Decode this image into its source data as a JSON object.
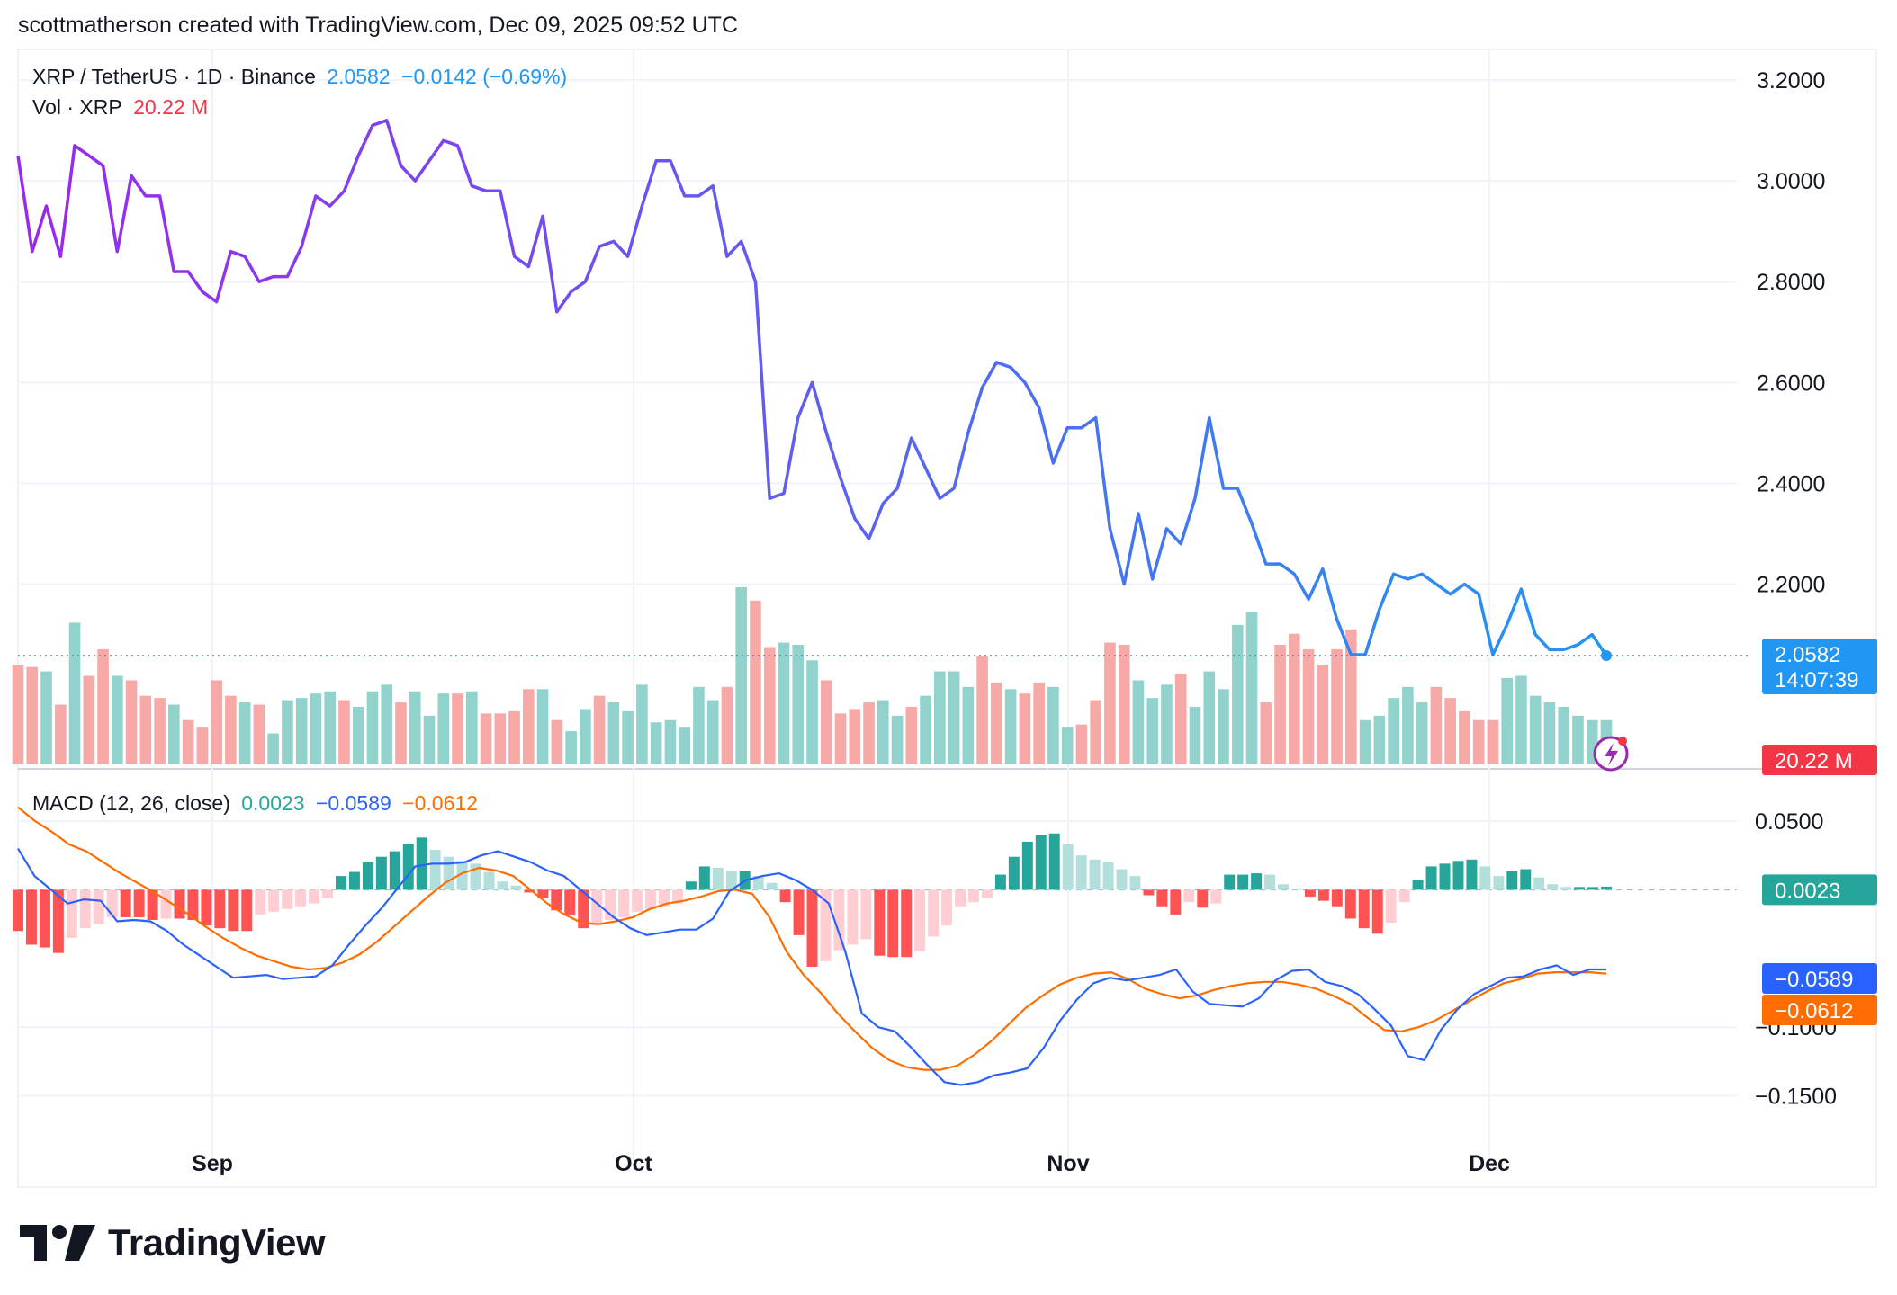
{
  "header": {
    "caption": "scottmatherson created with TradingView.com, Dec 09, 2025 09:52 UTC"
  },
  "legend": {
    "symbol": "XRP / TetherUS · 1D · Binance",
    "last": "2.0582",
    "change": "−0.0142 (−0.69%)",
    "vol_label": "Vol · XRP",
    "vol_value": "20.22 M",
    "macd_label": "MACD (12, 26, close)",
    "macd_hist": "0.0023",
    "macd_line": "−0.0589",
    "macd_signal": "−0.0612"
  },
  "badges": {
    "price": "2.0582",
    "countdown": "14:07:39",
    "volume": "20.22 M",
    "hist": "0.0023",
    "macd": "−0.0589",
    "signal": "−0.0612"
  },
  "colors": {
    "price_start": "#9c27f0",
    "price_end": "#2196f3",
    "up_vol": "#92d2cc",
    "down_vol": "#f7a9a7",
    "hist_up_strong": "#26a69a",
    "hist_up_weak": "#b2dfdb",
    "hist_down_strong": "#ff5252",
    "hist_down_weak": "#ffcdd2",
    "macd_line": "#2962ff",
    "signal_line": "#ff6d00",
    "grid": "#f0f3fa",
    "text": "#131722"
  },
  "logo": {
    "text": "TradingView",
    "icon": "tradingview-logo-icon"
  },
  "chart_data": {
    "type": "line",
    "price": {
      "name": "XRP / TetherUS",
      "y_ticks": [
        3.2,
        3.0,
        2.8,
        2.6,
        2.4,
        2.2
      ],
      "y_tick_labels": [
        "3.2000",
        "3.0000",
        "2.8000",
        "2.6000",
        "2.4000",
        "2.2000"
      ],
      "ylim": [
        2.03,
        3.25
      ],
      "values": [
        3.05,
        2.86,
        2.95,
        2.85,
        3.07,
        3.05,
        3.03,
        2.86,
        3.01,
        2.97,
        2.97,
        2.82,
        2.82,
        2.78,
        2.76,
        2.86,
        2.85,
        2.8,
        2.81,
        2.81,
        2.87,
        2.97,
        2.95,
        2.98,
        3.05,
        3.11,
        3.12,
        3.03,
        3.0,
        3.04,
        3.08,
        3.07,
        2.99,
        2.98,
        2.98,
        2.85,
        2.83,
        2.93,
        2.74,
        2.78,
        2.8,
        2.87,
        2.88,
        2.85,
        2.95,
        3.04,
        3.04,
        2.97,
        2.97,
        2.99,
        2.85,
        2.88,
        2.8,
        2.37,
        2.38,
        2.53,
        2.6,
        2.5,
        2.41,
        2.33,
        2.29,
        2.36,
        2.39,
        2.49,
        2.43,
        2.37,
        2.39,
        2.5,
        2.59,
        2.64,
        2.63,
        2.6,
        2.55,
        2.44,
        2.51,
        2.51,
        2.53,
        2.31,
        2.2,
        2.34,
        2.21,
        2.31,
        2.28,
        2.37,
        2.53,
        2.39,
        2.39,
        2.32,
        2.24,
        2.24,
        2.22,
        2.17,
        2.23,
        2.13,
        2.06,
        2.06,
        2.15,
        2.22,
        2.21,
        2.22,
        2.2,
        2.18,
        2.2,
        2.18,
        2.06,
        2.12,
        2.19,
        2.1,
        2.07,
        2.07,
        2.08,
        2.1,
        2.058
      ],
      "last": 2.0582
    },
    "volume": {
      "up": [
        0,
        0,
        1,
        0,
        1,
        0,
        0,
        1,
        0,
        0,
        0,
        1,
        0,
        0,
        0,
        0,
        1,
        0,
        1,
        1,
        1,
        1,
        1,
        0,
        1,
        1,
        1,
        0,
        1,
        1,
        1,
        0,
        1,
        0,
        0,
        0,
        0,
        1,
        0,
        1,
        1,
        0,
        1,
        1,
        1,
        1,
        1,
        1,
        1,
        1,
        0,
        1,
        0,
        0,
        1,
        1,
        1,
        0,
        0,
        0,
        0,
        1,
        1,
        0,
        1,
        1,
        1,
        1,
        0,
        0,
        1,
        0,
        0,
        1,
        1,
        0,
        0,
        0,
        0,
        1,
        1,
        1,
        0,
        1,
        1,
        1,
        1,
        1,
        0,
        0,
        0,
        0,
        0,
        0,
        0,
        1,
        1,
        1,
        1,
        1,
        0,
        0,
        0,
        0,
        0,
        1,
        1,
        1,
        1,
        1,
        1,
        1,
        1
      ],
      "values": [
        45,
        44,
        42,
        27,
        64,
        40,
        52,
        40,
        38,
        31,
        30,
        27,
        20,
        17,
        38,
        31,
        28,
        27,
        14,
        29,
        30,
        32,
        33,
        29,
        26,
        33,
        36,
        28,
        33,
        22,
        32,
        32,
        33,
        23,
        23,
        24,
        34,
        34,
        20,
        15,
        25,
        31,
        28,
        24,
        36,
        19,
        20,
        17,
        35,
        29,
        35,
        80,
        74,
        53,
        55,
        54,
        47,
        38,
        23,
        25,
        28,
        29,
        22,
        26,
        31,
        42,
        42,
        35,
        49,
        37,
        34,
        32,
        37,
        35,
        17,
        18,
        29,
        55,
        54,
        38,
        30,
        36,
        41,
        26,
        42,
        34,
        63,
        69,
        28,
        54,
        59,
        52,
        45,
        52,
        61,
        20,
        22,
        30,
        35,
        28,
        35,
        30,
        24,
        20,
        20,
        39,
        40,
        31,
        28,
        26,
        22,
        20,
        20
      ]
    },
    "macd": {
      "y_ticks": [
        0.05,
        -0.1,
        -0.15
      ],
      "y_tick_labels": [
        "0.0500",
        "−0.1000",
        "−0.1500"
      ],
      "ylim": [
        -0.17,
        0.09
      ],
      "macd": [
        0.03,
        0.01,
        0.0,
        -0.01,
        -0.007,
        -0.008,
        -0.023,
        -0.022,
        -0.023,
        -0.03,
        -0.04,
        -0.048,
        -0.056,
        -0.064,
        -0.063,
        -0.062,
        -0.065,
        -0.064,
        -0.063,
        -0.055,
        -0.04,
        -0.026,
        -0.013,
        0.002,
        0.017,
        0.019,
        0.019,
        0.02,
        0.025,
        0.028,
        0.024,
        0.02,
        0.014,
        0.01,
        0.0,
        -0.01,
        -0.02,
        -0.028,
        -0.033,
        -0.031,
        -0.029,
        -0.029,
        -0.021,
        -0.001,
        0.007,
        0.01,
        0.012,
        0.007,
        0.0,
        -0.01,
        -0.045,
        -0.09,
        -0.1,
        -0.103,
        -0.115,
        -0.128,
        -0.14,
        -0.142,
        -0.14,
        -0.135,
        -0.133,
        -0.13,
        -0.115,
        -0.095,
        -0.08,
        -0.068,
        -0.064,
        -0.066,
        -0.064,
        -0.062,
        -0.058,
        -0.074,
        -0.083,
        -0.084,
        -0.085,
        -0.079,
        -0.066,
        -0.059,
        -0.058,
        -0.067,
        -0.07,
        -0.076,
        -0.087,
        -0.099,
        -0.121,
        -0.124,
        -0.102,
        -0.087,
        -0.076,
        -0.07,
        -0.064,
        -0.063,
        -0.058,
        -0.055,
        -0.062,
        -0.058,
        -0.058
      ],
      "signal": [
        0.06,
        0.05,
        0.042,
        0.033,
        0.028,
        0.02,
        0.012,
        0.005,
        -0.002,
        -0.01,
        -0.018,
        -0.027,
        -0.035,
        -0.042,
        -0.048,
        -0.052,
        -0.056,
        -0.058,
        -0.057,
        -0.053,
        -0.047,
        -0.038,
        -0.027,
        -0.016,
        -0.005,
        0.005,
        0.012,
        0.016,
        0.014,
        0.01,
        0.0,
        -0.01,
        -0.018,
        -0.024,
        -0.025,
        -0.023,
        -0.02,
        -0.014,
        -0.01,
        -0.008,
        -0.005,
        -0.001,
        0.0,
        -0.003,
        -0.02,
        -0.045,
        -0.062,
        -0.075,
        -0.09,
        -0.103,
        -0.115,
        -0.124,
        -0.129,
        -0.131,
        -0.131,
        -0.128,
        -0.12,
        -0.11,
        -0.098,
        -0.086,
        -0.077,
        -0.069,
        -0.064,
        -0.061,
        -0.06,
        -0.065,
        -0.072,
        -0.076,
        -0.079,
        -0.077,
        -0.073,
        -0.07,
        -0.068,
        -0.067,
        -0.067,
        -0.069,
        -0.072,
        -0.077,
        -0.083,
        -0.093,
        -0.102,
        -0.103,
        -0.1,
        -0.095,
        -0.088,
        -0.081,
        -0.074,
        -0.068,
        -0.065,
        -0.061,
        -0.06,
        -0.06,
        -0.06,
        -0.061
      ],
      "histogram": [
        -0.03,
        -0.04,
        -0.042,
        -0.046,
        -0.035,
        -0.028,
        -0.025,
        -0.02,
        -0.02,
        -0.02,
        -0.022,
        -0.021,
        -0.021,
        -0.022,
        -0.026,
        -0.028,
        -0.03,
        -0.03,
        -0.018,
        -0.016,
        -0.014,
        -0.012,
        -0.01,
        -0.006,
        0.01,
        0.013,
        0.02,
        0.024,
        0.028,
        0.033,
        0.038,
        0.029,
        0.024,
        0.021,
        0.019,
        0.013,
        0.006,
        0.003,
        -0.002,
        -0.006,
        -0.015,
        -0.018,
        -0.028,
        -0.026,
        -0.022,
        -0.02,
        -0.016,
        -0.014,
        -0.012,
        -0.01,
        0.006,
        0.017,
        0.016,
        0.014,
        0.014,
        0.01,
        0.005,
        -0.009,
        -0.033,
        -0.056,
        -0.052,
        -0.044,
        -0.04,
        -0.036,
        -0.048,
        -0.049,
        -0.049,
        -0.045,
        -0.034,
        -0.026,
        -0.012,
        -0.009,
        -0.006,
        0.011,
        0.024,
        0.035,
        0.04,
        0.041,
        0.033,
        0.025,
        0.022,
        0.02,
        0.015,
        0.01,
        -0.004,
        -0.012,
        -0.018,
        -0.009,
        -0.013,
        -0.01,
        0.011,
        0.011,
        0.012,
        0.011,
        0.004,
        0.001,
        -0.005,
        -0.008,
        -0.012,
        -0.021,
        -0.028,
        -0.032,
        -0.024,
        -0.009,
        0.007,
        0.017,
        0.019,
        0.021,
        0.022,
        0.017,
        0.01,
        0.014,
        0.015,
        0.009,
        0.004,
        0.002,
        0.002,
        0.002,
        0.0023
      ]
    },
    "x_labels": [
      "Sep",
      "Oct",
      "Nov",
      "Dec"
    ],
    "grid": true
  }
}
